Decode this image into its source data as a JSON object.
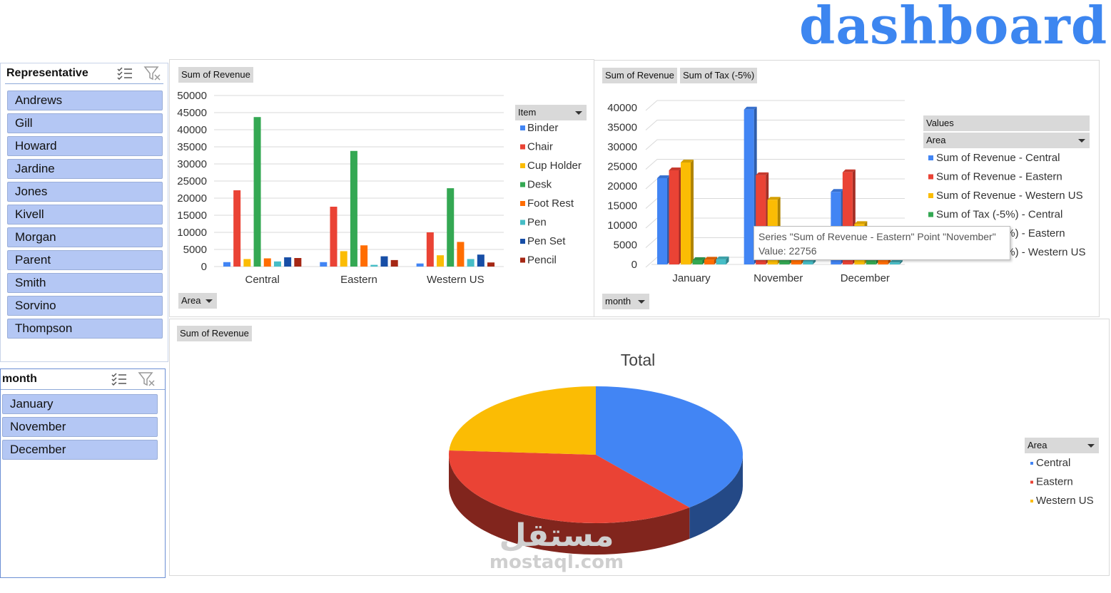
{
  "title": "dashboard",
  "colors": {
    "blue": "#4285f4",
    "red": "#ea4335",
    "yellow": "#fbbc04",
    "green": "#34a853",
    "orange": "#ff6d01",
    "teal": "#46bdc6",
    "navy": "#174ea6",
    "maroon": "#a52714",
    "slicer_item": "#b4c7f4",
    "title": "#3d86f0"
  },
  "slicers": {
    "representative": {
      "label": "Representative",
      "icons": [
        "multi-select-icon",
        "clear-filter-icon"
      ],
      "items": [
        "Andrews",
        "Gill",
        "Howard",
        "Jardine",
        "Jones",
        "Kivell",
        "Morgan",
        "Parent",
        "Smith",
        "Sorvino",
        "Thompson"
      ]
    },
    "month": {
      "label": "month",
      "icons": [
        "multi-select-icon",
        "clear-filter-icon"
      ],
      "items": [
        "January",
        "November",
        "December"
      ]
    }
  },
  "chart1": {
    "value_button": "Sum of Revenue",
    "axis_button": "Area",
    "legend_button": "Item"
  },
  "chart2": {
    "value_buttons": [
      "Sum of Revenue",
      "Sum of Tax (-5%)"
    ],
    "axis_button": "month",
    "legend_header": "Values",
    "legend_button": "Area",
    "tooltip": {
      "line1": "Series \"Sum of Revenue - Eastern\" Point \"November\"",
      "line2": "Value: 22756"
    }
  },
  "chart3": {
    "value_button": "Sum of Revenue",
    "legend_button": "Area"
  },
  "watermark": {
    "arabic": "مستقل",
    "latin": "mostaql.com"
  },
  "chart_data": [
    {
      "type": "bar",
      "categories": [
        "Central",
        "Eastern",
        "Western US"
      ],
      "ylim": [
        0,
        50000
      ],
      "yticks": [
        0,
        5000,
        10000,
        15000,
        20000,
        25000,
        30000,
        35000,
        40000,
        45000,
        50000
      ],
      "grid": true,
      "legend": "right",
      "legend_title": "Item",
      "series": [
        {
          "name": "Binder",
          "values": [
            1300,
            1300,
            900
          ]
        },
        {
          "name": "Chair",
          "values": [
            22300,
            17500,
            10000
          ]
        },
        {
          "name": "Cup Holder",
          "values": [
            2200,
            4500,
            3300
          ]
        },
        {
          "name": "Desk",
          "values": [
            43700,
            33800,
            22900
          ]
        },
        {
          "name": "Foot Rest",
          "values": [
            2400,
            6200,
            7200
          ]
        },
        {
          "name": "Pen",
          "values": [
            1500,
            500,
            2200
          ]
        },
        {
          "name": "Pen Set",
          "values": [
            2700,
            3000,
            3500
          ]
        },
        {
          "name": "Pencil",
          "values": [
            2500,
            1900,
            1200
          ]
        }
      ]
    },
    {
      "type": "bar",
      "categories": [
        "January",
        "November",
        "December"
      ],
      "ylim": [
        0,
        40000
      ],
      "yticks": [
        0,
        5000,
        10000,
        15000,
        20000,
        25000,
        30000,
        35000,
        40000
      ],
      "grid": true,
      "legend": "right",
      "series": [
        {
          "name": "Sum of Revenue - Central",
          "values": [
            22000,
            39500,
            18500
          ]
        },
        {
          "name": "Sum of Revenue - Eastern",
          "values": [
            24000,
            22756,
            23500
          ]
        },
        {
          "name": "Sum of Revenue - Western US",
          "values": [
            26000,
            16500,
            10300
          ]
        },
        {
          "name": "Sum of Tax (-5%) - Central",
          "values": [
            1100,
            1975,
            925
          ]
        },
        {
          "name": "Sum of Tax (-5%) - Eastern",
          "values": [
            1200,
            1138,
            1175
          ]
        },
        {
          "name": "Sum of Tax (-5%) - Western US",
          "values": [
            1300,
            825,
            515
          ]
        }
      ]
    },
    {
      "type": "pie",
      "title": "Total",
      "legend": "right",
      "legend_title": "Area",
      "categories": [
        "Central",
        "Eastern",
        "Western US"
      ],
      "values": [
        39,
        37,
        24
      ]
    }
  ]
}
